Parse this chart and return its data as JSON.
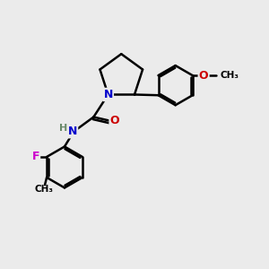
{
  "bg_color": "#ebebeb",
  "atom_colors": {
    "C": "#000000",
    "N": "#0000cc",
    "O": "#cc0000",
    "F": "#cc00cc",
    "H": "#6a8a6a"
  },
  "bond_color": "#000000",
  "bond_width": 1.8,
  "figsize": [
    3.0,
    3.0
  ],
  "dpi": 100
}
